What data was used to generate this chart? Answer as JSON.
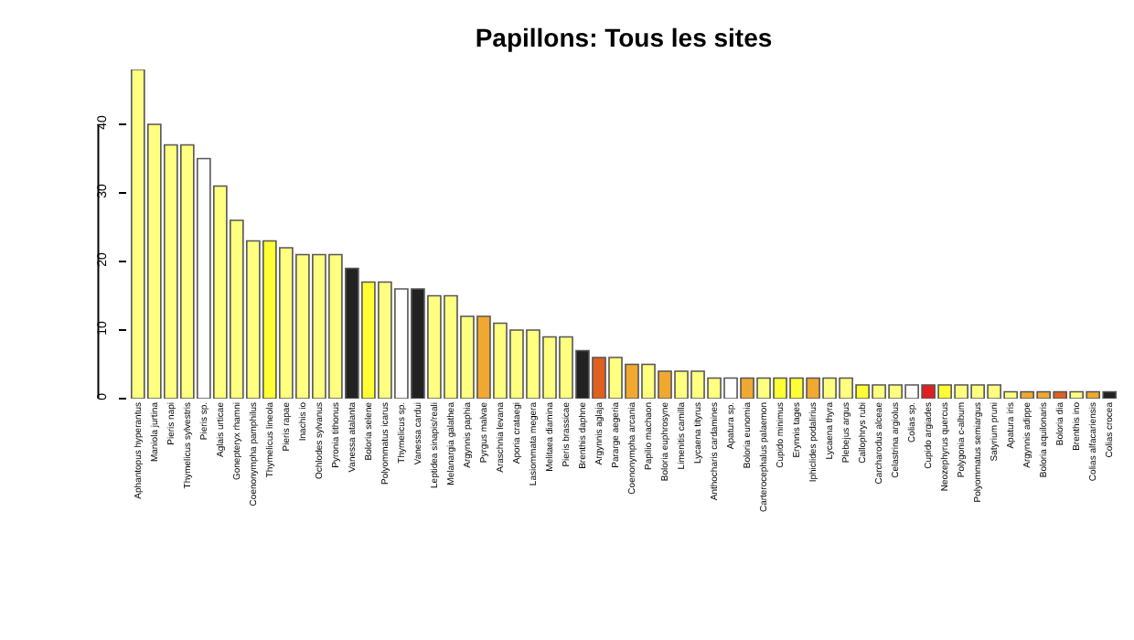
{
  "chart_data": {
    "type": "bar",
    "title": "Papillons: Tous les sites",
    "categories": [
      "Aphantopus hyperantus",
      "Maniola jurtina",
      "Pieris napi",
      "Thymelicus sylvestris",
      "Pieris sp.",
      "Aglais urticae",
      "Gonepteryx rhamni",
      "Coenonympha pamphilus",
      "Thymelicus lineola",
      "Pieris rapae",
      "Inachis io",
      "Ochlodes sylvanus",
      "Pyronia tithonus",
      "Vanessa atalanta",
      "Boloria selene",
      "Polyommatus icarus",
      "Thymelicus sp.",
      "Vanessa cardui",
      "Leptidea sinapis/reali",
      "Melanargia galathea",
      "Argynnis paphia",
      "Pyrgus malvae",
      "Araschnia levana",
      "Aporia crataegi",
      "Lasiommata megera",
      "Melitaea diamina",
      "Pieris brassicae",
      "Brenthis daphne",
      "Argynnis aglaja",
      "Pararge aegeria",
      "Coenonympha arcania",
      "Papilio machaon",
      "Boloria euphrosyne",
      "Limenitis camilla",
      "Lycaena tityrus",
      "Anthocharis cardamines",
      "Apatura sp.",
      "Boloria eunomia",
      "Carterocephalus palaemon",
      "Cupido minimus",
      "Erynnis tages",
      "Iphiclides podalirius",
      "Lycaena thyra",
      "Plebejus argus",
      "Callophrys rubi",
      "Carcharodus alceae",
      "Celastrina argiolus",
      "Colias sp.",
      "Cupido argiades",
      "Neozephyrus quercus",
      "Polygonia c-album",
      "Polyommatus semiargus",
      "Satyrium pruni",
      "Apatura iris",
      "Argynnis adippe",
      "Boloria aquilonaris",
      "Boloria dia",
      "Brenthis ino",
      "Colias alfacariensis",
      "Colias crocea"
    ],
    "values": [
      48,
      40,
      37,
      37,
      35,
      31,
      26,
      23,
      23,
      22,
      21,
      21,
      21,
      19,
      17,
      17,
      16,
      16,
      15,
      15,
      12,
      12,
      11,
      10,
      10,
      9,
      9,
      7,
      6,
      6,
      5,
      5,
      4,
      4,
      4,
      3,
      3,
      3,
      3,
      3,
      3,
      3,
      3,
      3,
      2,
      2,
      2,
      2,
      2,
      2,
      2,
      2,
      2,
      1,
      1,
      1,
      1,
      1,
      1,
      1
    ],
    "colors": [
      "#ffff80",
      "#ffff80",
      "#ffff80",
      "#ffff80",
      "#ffffff",
      "#ffff80",
      "#ffff80",
      "#ffff80",
      "#ffff33",
      "#ffff80",
      "#ffff80",
      "#ffff80",
      "#ffff80",
      "#222222",
      "#ffff33",
      "#ffff80",
      "#ffffff",
      "#222222",
      "#ffff80",
      "#ffff80",
      "#ffff80",
      "#f0a830",
      "#ffff80",
      "#ffff80",
      "#ffff80",
      "#ffff80",
      "#ffff80",
      "#222222",
      "#e06020",
      "#ffff80",
      "#f0a830",
      "#ffff80",
      "#f0a830",
      "#ffff80",
      "#ffff80",
      "#ffff80",
      "#ffffff",
      "#f0a830",
      "#ffff80",
      "#ffff33",
      "#ffff33",
      "#f0a830",
      "#ffff80",
      "#ffff80",
      "#ffff33",
      "#ffff80",
      "#ffff80",
      "#ffffff",
      "#e02020",
      "#ffff33",
      "#ffff80",
      "#ffff80",
      "#ffff80",
      "#ffff80",
      "#f0a830",
      "#f0a830",
      "#e06020",
      "#ffff80",
      "#f0a830",
      "#222222"
    ],
    "ylim": [
      0,
      48
    ],
    "yticks": [
      0,
      10,
      20,
      30,
      40
    ]
  }
}
